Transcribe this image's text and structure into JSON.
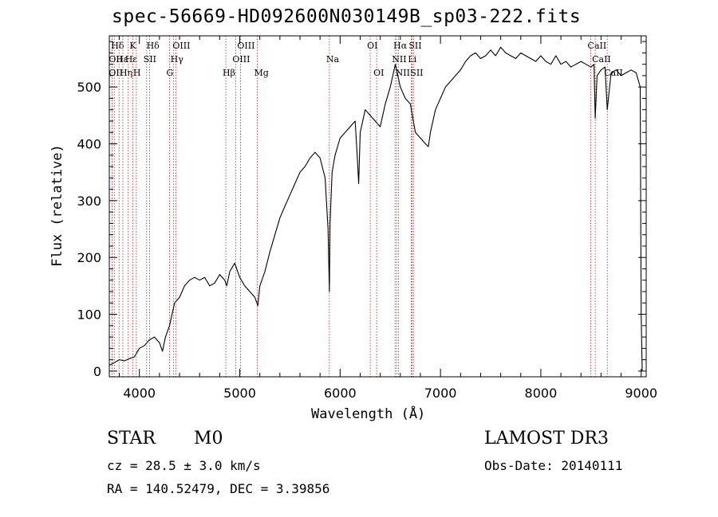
{
  "chart_data": {
    "type": "line",
    "title": "spec-56669-HD092600N030149B_sp03-222.fits",
    "xlabel": "Wavelength (Å)",
    "ylabel": "Flux (relative)",
    "xlim": [
      3700,
      9050
    ],
    "ylim": [
      -10,
      590
    ],
    "x_ticks": [
      4000,
      5000,
      6000,
      7000,
      8000,
      9000
    ],
    "y_ticks": [
      0,
      100,
      200,
      300,
      400,
      500
    ],
    "x_tick_labels": [
      "4000",
      "5000",
      "6000",
      "7000",
      "8000",
      "9000"
    ],
    "y_tick_labels": [
      "0",
      "100",
      "200",
      "300",
      "400",
      "500"
    ],
    "series": [
      {
        "name": "flux",
        "x": [
          3700,
          3750,
          3800,
          3850,
          3900,
          3950,
          4000,
          4050,
          4100,
          4150,
          4200,
          4230,
          4260,
          4300,
          4350,
          4400,
          4450,
          4500,
          4550,
          4600,
          4650,
          4700,
          4750,
          4800,
          4850,
          4870,
          4900,
          4950,
          5000,
          5050,
          5100,
          5150,
          5180,
          5200,
          5250,
          5300,
          5350,
          5400,
          5450,
          5500,
          5550,
          5600,
          5650,
          5700,
          5750,
          5800,
          5850,
          5880,
          5893,
          5900,
          5920,
          5950,
          6000,
          6050,
          6100,
          6150,
          6170,
          6185,
          6200,
          6250,
          6300,
          6350,
          6400,
          6450,
          6500,
          6550,
          6563,
          6600,
          6650,
          6700,
          6750,
          6800,
          6850,
          6880,
          6900,
          6950,
          7000,
          7050,
          7100,
          7150,
          7200,
          7250,
          7300,
          7350,
          7400,
          7450,
          7500,
          7550,
          7600,
          7650,
          7700,
          7750,
          7800,
          7850,
          7900,
          7950,
          8000,
          8050,
          8100,
          8150,
          8200,
          8250,
          8300,
          8350,
          8400,
          8450,
          8500,
          8530,
          8542,
          8560,
          8600,
          8640,
          8662,
          8700,
          8750,
          8800,
          8850,
          8900,
          8950,
          8990,
          9000,
          9010
        ],
        "y": [
          10,
          15,
          20,
          18,
          22,
          25,
          40,
          45,
          55,
          60,
          50,
          35,
          60,
          80,
          120,
          130,
          150,
          160,
          165,
          160,
          165,
          150,
          155,
          170,
          160,
          150,
          175,
          190,
          165,
          150,
          140,
          130,
          115,
          150,
          175,
          210,
          240,
          270,
          290,
          310,
          330,
          350,
          360,
          375,
          385,
          375,
          340,
          250,
          140,
          260,
          350,
          380,
          410,
          420,
          430,
          440,
          380,
          330,
          420,
          460,
          450,
          440,
          430,
          470,
          500,
          540,
          530,
          500,
          480,
          470,
          420,
          410,
          400,
          395,
          420,
          460,
          480,
          500,
          510,
          520,
          530,
          545,
          555,
          560,
          550,
          555,
          565,
          555,
          570,
          560,
          555,
          550,
          560,
          555,
          550,
          545,
          555,
          545,
          540,
          555,
          540,
          545,
          535,
          540,
          545,
          540,
          535,
          540,
          445,
          520,
          530,
          535,
          460,
          525,
          530,
          520,
          525,
          530,
          525,
          500,
          100,
          0
        ]
      }
    ],
    "lines": [
      {
        "x": 3750,
        "label": "Hδ",
        "row": 0
      },
      {
        "x": 3727,
        "label": "OII",
        "row": 1
      },
      {
        "x": 3727,
        "label": "OII",
        "row": 2
      },
      {
        "x": 3797,
        "label": "Hε",
        "row": 1
      },
      {
        "x": 3835,
        "label": "Hη",
        "row": 2
      },
      {
        "x": 3889,
        "label": "Hε",
        "row": 1
      },
      {
        "x": 3934,
        "label": "K",
        "row": 0
      },
      {
        "x": 3969,
        "label": "H",
        "row": 2
      },
      {
        "x": 4072,
        "label": "SII",
        "row": 1
      },
      {
        "x": 4102,
        "label": "Hδ",
        "row": 0
      },
      {
        "x": 4300,
        "label": "G",
        "row": 2
      },
      {
        "x": 4341,
        "label": "Hγ",
        "row": 1
      },
      {
        "x": 4363,
        "label": "OIII",
        "row": 0
      },
      {
        "x": 4861,
        "label": "Hβ",
        "row": 2
      },
      {
        "x": 4959,
        "label": "OIII",
        "row": 1
      },
      {
        "x": 5007,
        "label": "OIII",
        "row": 0
      },
      {
        "x": 5175,
        "label": "Mg",
        "row": 2
      },
      {
        "x": 5893,
        "label": "Na",
        "row": 1
      },
      {
        "x": 6300,
        "label": "OI",
        "row": 0
      },
      {
        "x": 6364,
        "label": "OI",
        "row": 2
      },
      {
        "x": 6548,
        "label": "NII",
        "row": 1
      },
      {
        "x": 6563,
        "label": "Hα",
        "row": 0
      },
      {
        "x": 6583,
        "label": "NII",
        "row": 2
      },
      {
        "x": 6708,
        "label": "Li",
        "row": 1
      },
      {
        "x": 6716,
        "label": "SII",
        "row": 0
      },
      {
        "x": 6731,
        "label": "SII",
        "row": 2
      },
      {
        "x": 8498,
        "label": "CaII",
        "row": 0
      },
      {
        "x": 8542,
        "label": "CaII",
        "row": 1
      },
      {
        "x": 8662,
        "label": "CaII",
        "row": 2
      }
    ]
  },
  "info": {
    "object_class": "STAR",
    "subclass": "M0",
    "survey": "LAMOST DR3",
    "redshift": "cz = 28.5 ± 3.0 km/s",
    "obs_date": "Obs-Date: 20140111",
    "coords": "RA = 140.52479, DEC =    3.39856"
  }
}
